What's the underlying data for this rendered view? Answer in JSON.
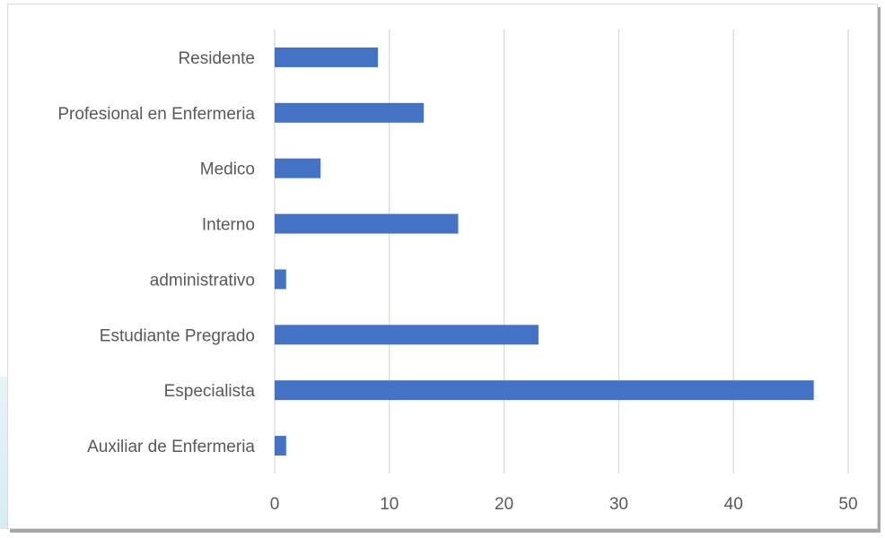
{
  "chart_data": {
    "type": "bar",
    "orientation": "horizontal",
    "title": "",
    "xlabel": "",
    "ylabel": "",
    "categories": [
      "Residente",
      "Profesional en Enfermeria",
      "Medico",
      "Interno",
      "administrativo",
      "Estudiante Pregrado",
      "Especialista",
      "Auxiliar de Enfermeria"
    ],
    "values": [
      9,
      13,
      4,
      16,
      1,
      23,
      47,
      1
    ],
    "xlim": [
      0,
      50
    ],
    "xticks": [
      0,
      10,
      20,
      30,
      40,
      50
    ],
    "grid": "vertical",
    "legend": "none",
    "bar_color": "#4472c4",
    "grid_color": "#d9d9d9"
  }
}
